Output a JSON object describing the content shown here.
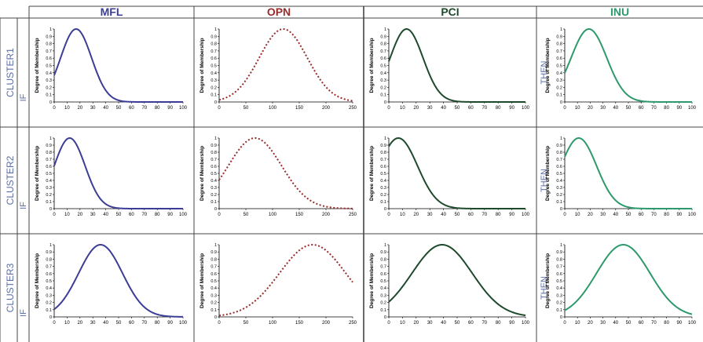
{
  "columns": [
    {
      "label": "MFL",
      "color": "#3b3e96"
    },
    {
      "label": "OPN",
      "color": "#9a2b2b"
    },
    {
      "label": "PCI",
      "color": "#1e4a2c"
    },
    {
      "label": "INU",
      "color": "#2e9a6c"
    }
  ],
  "rows": [
    {
      "label": "CLUSTER1",
      "if_label": "IF",
      "then_label": "THEN"
    },
    {
      "label": "CLUSTER2",
      "if_label": "IF",
      "then_label": "THEN"
    },
    {
      "label": "CLUSTER3",
      "if_label": "IF",
      "then_label": "THEN"
    }
  ],
  "row_label_color": "#5b6fa6",
  "ylabel": "Degree of Membership",
  "y_ticks": [
    "0",
    "0.1",
    "0.2",
    "0.3",
    "0.4",
    "0.5",
    "0.6",
    "0.7",
    "0.8",
    "0.9",
    "1"
  ],
  "x_ticks": {
    "MFL": [
      "0",
      "10",
      "20",
      "30",
      "40",
      "50",
      "60",
      "70",
      "80",
      "90",
      "100"
    ],
    "OPN": [
      "0",
      "50",
      "100",
      "150",
      "200",
      "250"
    ],
    "PCI": [
      "0",
      "10",
      "20",
      "30",
      "40",
      "50",
      "60",
      "70",
      "80",
      "90",
      "100"
    ],
    "INU": [
      "0",
      "10",
      "20",
      "30",
      "40",
      "50",
      "60",
      "70",
      "80",
      "90",
      "100"
    ]
  },
  "chart_data": [
    {
      "type": "line",
      "title": "MFL",
      "row": "CLUSTER1",
      "series": [
        {
          "function": "gaussian",
          "center": 17,
          "sigma": 12
        }
      ],
      "xlim": [
        0,
        100
      ],
      "ylim": [
        0,
        1
      ],
      "ylabel": "Degree of Membership"
    },
    {
      "type": "line",
      "title": "OPN",
      "row": "CLUSTER1",
      "series": [
        {
          "function": "gaussian",
          "center": 120,
          "sigma": 45
        }
      ],
      "xlim": [
        0,
        250
      ],
      "ylim": [
        0,
        1
      ],
      "ylabel": "Degree of Membership"
    },
    {
      "type": "line",
      "title": "PCI",
      "row": "CLUSTER1",
      "series": [
        {
          "function": "gaussian",
          "center": 13,
          "sigma": 12
        }
      ],
      "xlim": [
        0,
        100
      ],
      "ylim": [
        0,
        1
      ],
      "ylabel": "Degree of Membership"
    },
    {
      "type": "line",
      "title": "INU",
      "row": "CLUSTER1",
      "series": [
        {
          "function": "gaussian",
          "center": 19,
          "sigma": 14
        }
      ],
      "xlim": [
        0,
        100
      ],
      "ylim": [
        0,
        1
      ],
      "ylabel": "Degree of Membership"
    },
    {
      "type": "line",
      "title": "MFL",
      "row": "CLUSTER2",
      "series": [
        {
          "function": "gaussian",
          "center": 12,
          "sigma": 12
        }
      ],
      "xlim": [
        0,
        100
      ],
      "ylim": [
        0,
        1
      ],
      "ylabel": "Degree of Membership"
    },
    {
      "type": "line",
      "title": "OPN",
      "row": "CLUSTER2",
      "series": [
        {
          "function": "gaussian",
          "center": 67,
          "sigma": 50
        }
      ],
      "xlim": [
        0,
        250
      ],
      "ylim": [
        0,
        1
      ],
      "ylabel": "Degree of Membership"
    },
    {
      "type": "line",
      "title": "PCI",
      "row": "CLUSTER2",
      "series": [
        {
          "function": "gaussian",
          "center": 7,
          "sigma": 14
        }
      ],
      "xlim": [
        0,
        100
      ],
      "ylim": [
        0,
        1
      ],
      "ylabel": "Degree of Membership"
    },
    {
      "type": "line",
      "title": "INU",
      "row": "CLUSTER2",
      "series": [
        {
          "function": "gaussian",
          "center": 11,
          "sigma": 14
        }
      ],
      "xlim": [
        0,
        100
      ],
      "ylim": [
        0,
        1
      ],
      "ylabel": "Degree of Membership"
    },
    {
      "type": "line",
      "title": "MFL",
      "row": "CLUSTER3",
      "series": [
        {
          "function": "gaussian",
          "center": 36,
          "sigma": 17
        }
      ],
      "xlim": [
        0,
        100
      ],
      "ylim": [
        0,
        1
      ],
      "ylabel": "Degree of Membership"
    },
    {
      "type": "line",
      "title": "OPN",
      "row": "CLUSTER3",
      "series": [
        {
          "function": "gaussian",
          "center": 175,
          "sigma": 62
        }
      ],
      "xlim": [
        0,
        250
      ],
      "ylim": [
        0,
        1
      ],
      "ylabel": "Degree of Membership"
    },
    {
      "type": "line",
      "title": "PCI",
      "row": "CLUSTER3",
      "series": [
        {
          "function": "gaussian",
          "center": 39,
          "sigma": 22
        }
      ],
      "xlim": [
        0,
        100
      ],
      "ylim": [
        0,
        1
      ],
      "ylabel": "Degree of Membership"
    },
    {
      "type": "line",
      "title": "INU",
      "row": "CLUSTER3",
      "series": [
        {
          "function": "gaussian",
          "center": 46,
          "sigma": 21
        }
      ],
      "xlim": [
        0,
        100
      ],
      "ylim": [
        0,
        1
      ],
      "ylabel": "Degree of Membership"
    }
  ]
}
